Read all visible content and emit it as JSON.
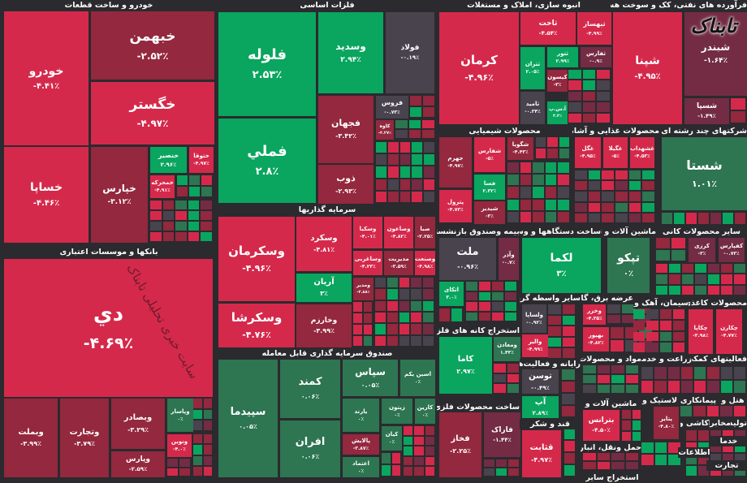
{
  "colors": {
    "red": "#d5294b",
    "dark_red": "#93283e",
    "mauve": "#732c44",
    "green": "#0aa55f",
    "dark_green": "#2e7552",
    "gray": "#48434d",
    "background": "#2b2a2e"
  },
  "logo": "تابناک",
  "watermark": "سایت خبری تحلیلی تابناک",
  "sectors": [
    "خودرو و ساخت قطعات",
    "بانکها و موسسات اعتباری",
    "فلزات اساسی",
    "سرمایه گذاریها",
    "صندوق سرمایه گذاری قابل معامله",
    "انبوه سازی، املاک و مستغلات",
    "فرآورده های نفتی، کک و سوخت هسته ای",
    "محصولات شیمیایی",
    "محصولات غذایی و آشامیدنی به",
    "شرکتهای چند رشته ای صنعتی",
    "بیمه وصندوق بازنشستگی به",
    "ساخت دستگاهها و وسایل",
    "ماشین آلات و تجهیزات",
    "سایر محصولات کانی",
    "استخراج کانه های فلزی",
    "سایر واسطه گریهای",
    "عرضه برق، گاز",
    "سیمان، آهک و گچ",
    "محصولات کاغذی",
    "رایانه و فعالیت‌های",
    "مواد و محصولات",
    "زراعت و خدمات",
    "فعالیتهای کمکی",
    "ساخت محصولات فلزی",
    "ماشین آلات و",
    "لاستیک و",
    "پیمانکاری",
    "هتل و",
    "قند و شکر",
    "حمل ونقل، انبارداری و",
    "کاشی و",
    "مخابرات",
    "تولید",
    "استخراج سایر",
    "اطلاعات",
    "خدما",
    "تجارت"
  ],
  "tiles": [
    {
      "symbol": "خودرو",
      "change": "-۴.۴۱٪",
      "color": "red"
    },
    {
      "symbol": "خبهمن",
      "change": "-۲.۵۲٪",
      "color": "dark_red"
    },
    {
      "symbol": "خگستر",
      "change": "-۴.۹۷٪",
      "color": "red"
    },
    {
      "symbol": "خساپا",
      "change": "-۴.۴۶٪",
      "color": "red"
    },
    {
      "symbol": "خپارس",
      "change": "-۳.۱۲٪",
      "color": "dark_red"
    },
    {
      "symbol": "خنصیر",
      "change": "۲.۹۶٪",
      "color": "green"
    },
    {
      "symbol": "ختوقا",
      "change": "-۴.۹۷٪",
      "color": "red"
    },
    {
      "symbol": "خمحرکه",
      "change": "-۴.۹۱٪",
      "color": "red"
    },
    {
      "symbol": "دي",
      "change": "-۴.۶۹٪",
      "color": "red"
    },
    {
      "symbol": "وبملت",
      "change": "-۳.۹۹٪",
      "color": "dark_red"
    },
    {
      "symbol": "وتجارت",
      "change": "-۳.۷۹٪",
      "color": "dark_red"
    },
    {
      "symbol": "وبصادر",
      "change": "-۳.۲۹٪",
      "color": "dark_red"
    },
    {
      "symbol": "وپارس",
      "change": "-۲.۵۹٪",
      "color": "dark_red"
    },
    {
      "symbol": "وپاسار",
      "change": "۰٪",
      "color": "dark_green"
    },
    {
      "symbol": "ونوین",
      "change": "-۴.۰٪",
      "color": "red"
    },
    {
      "symbol": "فلوله",
      "change": "۲.۵۳٪",
      "color": "green"
    },
    {
      "symbol": "فملي",
      "change": "۲.۸٪",
      "color": "green"
    },
    {
      "symbol": "وسديد",
      "change": "۲.۹۴٪",
      "color": "green"
    },
    {
      "symbol": "فولاد",
      "change": "-۰.۱۹٪",
      "color": "gray"
    },
    {
      "symbol": "فجهان",
      "change": "-۳.۴۲٪",
      "color": "dark_red"
    },
    {
      "symbol": "ذوب",
      "change": "-۲.۹۳٪",
      "color": "dark_red"
    },
    {
      "symbol": "فروس",
      "change": "-۰.۷۳٪",
      "color": "gray"
    },
    {
      "symbol": "کاوه",
      "change": "-۳.۲۷٪",
      "color": "dark_red"
    },
    {
      "symbol": "وسکرمان",
      "change": "-۴.۹۶٪",
      "color": "red"
    },
    {
      "symbol": "وسکرشا",
      "change": "-۴.۷۶٪",
      "color": "red"
    },
    {
      "symbol": "وسکرد",
      "change": "-۴.۸۱٪",
      "color": "red"
    },
    {
      "symbol": "آریان",
      "change": "۳٪",
      "color": "green"
    },
    {
      "symbol": "وخارزم",
      "change": "-۳.۹۹٪",
      "color": "dark_red"
    },
    {
      "symbol": "وسکیا",
      "change": "-۴.۰۱٪",
      "color": "red"
    },
    {
      "symbol": "وصاعون",
      "change": "-۴.۸۲٪",
      "color": "red"
    },
    {
      "symbol": "صبا",
      "change": "-۲.۲۵٪",
      "color": "dark_red"
    },
    {
      "symbol": "وساغربی",
      "change": "-۴.۲۳٪",
      "color": "red"
    },
    {
      "symbol": "مديريت",
      "change": "-۳.۵۹٪",
      "color": "dark_red"
    },
    {
      "symbol": "وصنعت",
      "change": "-۴.۹۸٪",
      "color": "red"
    },
    {
      "symbol": "ومدير",
      "change": "-۲.۸۸٪",
      "color": "dark_red"
    },
    {
      "symbol": "سپیدما",
      "change": "۰.۰۵٪",
      "color": "dark_green"
    },
    {
      "symbol": "کمند",
      "change": "۰.۰۶٪",
      "color": "dark_green"
    },
    {
      "symbol": "افران",
      "change": "۰.۰۶٪",
      "color": "dark_green"
    },
    {
      "symbol": "سپاس",
      "change": "۰.۰۵٪",
      "color": "dark_green"
    },
    {
      "symbol": "اسین یکم",
      "change": "۰٪",
      "color": "dark_green"
    },
    {
      "symbol": "یارند",
      "change": "۰٪",
      "color": "dark_green"
    },
    {
      "symbol": "زیتون",
      "change": "۰٪",
      "color": "dark_green"
    },
    {
      "symbol": "کارین",
      "change": "۰٪",
      "color": "dark_green"
    },
    {
      "symbol": "پالایش",
      "change": "-۳.۸۷٪",
      "color": "dark_red"
    },
    {
      "symbol": "کیان",
      "change": "۰٪",
      "color": "dark_green"
    },
    {
      "symbol": "اعتماد",
      "change": "۰٪",
      "color": "dark_green"
    },
    {
      "symbol": "کرمان",
      "change": "-۴.۹۶٪",
      "color": "red"
    },
    {
      "symbol": "ثاخت",
      "change": "-۴.۵۴٪",
      "color": "red"
    },
    {
      "symbol": "ثبهساز",
      "change": "-۴.۹۹٪",
      "color": "red"
    },
    {
      "symbol": "ثتران",
      "change": "۲.۰۵٪",
      "color": "green"
    },
    {
      "symbol": "ثتور",
      "change": "۲.۹۹٪",
      "color": "green"
    },
    {
      "symbol": "ثفارس",
      "change": "-۰.۹٪",
      "color": "mauve"
    },
    {
      "symbol": "کیسون",
      "change": "-۳٪",
      "color": "dark_red"
    },
    {
      "symbol": "ثامید",
      "change": "-۰.۳۴٪",
      "color": "gray"
    },
    {
      "symbol": "آ.س.پ",
      "change": "۳.۳٪",
      "color": "green"
    },
    {
      "symbol": "شپنا",
      "change": "-۴.۹۵٪",
      "color": "red"
    },
    {
      "symbol": "شبندر",
      "change": "-۱.۶۴٪",
      "color": "mauve"
    },
    {
      "symbol": "شسپا",
      "change": "-۱.۴۹٪",
      "color": "mauve"
    },
    {
      "symbol": "جهرم",
      "change": "-۴.۹۷٪",
      "color": "dark_red"
    },
    {
      "symbol": "شفارس",
      "change": "-۵٪",
      "color": "red"
    },
    {
      "symbol": "شگویا",
      "change": "-۴.۴۳٪",
      "color": "dark_red"
    },
    {
      "symbol": "فسا",
      "change": "۲.۳۲٪",
      "color": "green"
    },
    {
      "symbol": "پترول",
      "change": "-۴.۷۳٪",
      "color": "red"
    },
    {
      "symbol": "شیدیر",
      "change": "-۳٪",
      "color": "dark_red"
    },
    {
      "symbol": "غگل",
      "change": "-۴.۹۵٪",
      "color": "red"
    },
    {
      "symbol": "غگیلا",
      "change": "-۵٪",
      "color": "red"
    },
    {
      "symbol": "غشهداب",
      "change": "-۴.۵۳٪",
      "color": "red"
    },
    {
      "symbol": "شستا",
      "change": "۱.۰۱٪",
      "color": "dark_green"
    },
    {
      "symbol": "ملت",
      "change": "-۰.۹۶٪",
      "color": "gray"
    },
    {
      "symbol": "وآذر",
      "change": "-۰.۷٪",
      "color": "mauve"
    },
    {
      "symbol": "اتکای",
      "change": "۳.۰٪",
      "color": "green"
    },
    {
      "symbol": "لکما",
      "change": "۳٪",
      "color": "green"
    },
    {
      "symbol": "تپکو",
      "change": "۰٪",
      "color": "dark_green"
    },
    {
      "symbol": "کرزی",
      "change": "-۳٪",
      "color": "mauve"
    },
    {
      "symbol": "کفپارس",
      "change": "-۰.۷۳٪",
      "color": "mauve"
    },
    {
      "symbol": "کاما",
      "change": "۲.۹۷٪",
      "color": "green"
    },
    {
      "symbol": "ومعادن",
      "change": "۱.۴۳٪",
      "color": "dark_green"
    },
    {
      "symbol": "فخاز",
      "change": "-۲.۲۵٪",
      "color": "dark_red"
    },
    {
      "symbol": "فاراک",
      "change": "-۱.۴۴٪",
      "color": "mauve"
    },
    {
      "symbol": "ولساپا",
      "change": "-۰.۹۲٪",
      "color": "gray"
    },
    {
      "symbol": "وخزر",
      "change": "-۴.۳۵٪",
      "color": "red"
    },
    {
      "symbol": "بهپور",
      "change": "-۴.۸۲٪",
      "color": "red"
    },
    {
      "symbol": "والبر",
      "change": "-۴.۹۹٪",
      "color": "red"
    },
    {
      "symbol": "توسن",
      "change": "-۰.۴۹٪",
      "color": "gray"
    },
    {
      "symbol": "آپ",
      "change": "۲.۸۹٪",
      "color": "green"
    },
    {
      "symbol": "قثابت",
      "change": "-۴.۹۷٪",
      "color": "red"
    },
    {
      "symbol": "بترانس",
      "change": "-۴.۵۰٪",
      "color": "red"
    },
    {
      "symbol": "چکاپا",
      "change": "-۳.۹۸٪",
      "color": "red"
    },
    {
      "symbol": "چکارن",
      "change": "-۴.۷۷٪",
      "color": "red"
    },
    {
      "symbol": "پتایر",
      "change": "-۴.۸۰٪",
      "color": "dark_red"
    }
  ]
}
